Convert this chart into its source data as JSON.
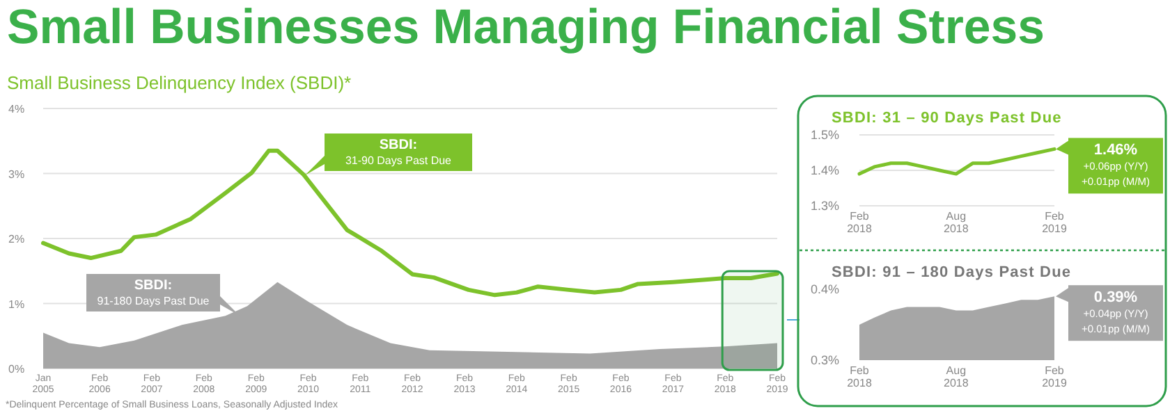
{
  "chart_data": [
    {
      "type": "line",
      "title": "Small Businesses Managing Financial Stress",
      "subtitle": "Small Business Delinquency Index (SBDI)*",
      "annotations": [
        "*Delinquent Percentage of Small Business Loans, Seasonally Adjusted Index"
      ],
      "xlim": [
        "2005-01",
        "2019-02"
      ],
      "xticks": [
        {
          "value": "2005-01",
          "label": "Jan 2005"
        },
        {
          "value": "2006-02",
          "label": "Feb 2006"
        },
        {
          "value": "2007-02",
          "label": "Feb 2007"
        },
        {
          "value": "2008-02",
          "label": "Feb 2008"
        },
        {
          "value": "2009-02",
          "label": "Feb 2009"
        },
        {
          "value": "2010-02",
          "label": "Feb 2010"
        },
        {
          "value": "2011-02",
          "label": "Feb 2011"
        },
        {
          "value": "2012-02",
          "label": "Feb 2012"
        },
        {
          "value": "2013-02",
          "label": "Feb 2013"
        },
        {
          "value": "2014-02",
          "label": "Feb 2014"
        },
        {
          "value": "2015-02",
          "label": "Feb 2015"
        },
        {
          "value": "2016-02",
          "label": "Feb 2016"
        },
        {
          "value": "2017-02",
          "label": "Feb 2017"
        },
        {
          "value": "2018-02",
          "label": "Feb 2018"
        },
        {
          "value": "2019-02",
          "label": "Feb 2019"
        }
      ],
      "bands": [
        {
          "axis": "x",
          "from": "2018-02",
          "to": "2019-02",
          "color": "#2e9e4a"
        }
      ],
      "ylim": [
        0,
        4
      ],
      "yticks": [
        {
          "value": 0,
          "label": "0%"
        },
        {
          "value": 1,
          "label": "1%"
        },
        {
          "value": 2,
          "label": "2%"
        },
        {
          "value": 3,
          "label": "3%"
        },
        {
          "value": 4,
          "label": "4%"
        }
      ],
      "grid": "y",
      "legend": false,
      "series": [
        {
          "name": "SBDI: 91-180 Days Past Due",
          "type": "area",
          "color": "#a6a6a6",
          "x": [
            "2005-01",
            "2005-07",
            "2006-02",
            "2006-10",
            "2007-09",
            "2008-07",
            "2008-12",
            "2009-07",
            "2010-02",
            "2010-11",
            "2011-09",
            "2012-06",
            "2013-10",
            "2015-07",
            "2016-11",
            "2018-02",
            "2019-02"
          ],
          "values": [
            0.55,
            0.39,
            0.33,
            0.43,
            0.67,
            0.81,
            0.96,
            1.33,
            1.03,
            0.67,
            0.39,
            0.28,
            0.26,
            0.23,
            0.3,
            0.34,
            0.39
          ]
        },
        {
          "name": "SBDI: 31-90 Days Past Due",
          "color": "#7dc22b",
          "x": [
            "2005-01",
            "2005-07",
            "2005-12",
            "2006-07",
            "2006-10",
            "2007-03",
            "2007-11",
            "2008-07",
            "2009-01",
            "2009-05",
            "2009-07",
            "2010-01",
            "2010-11",
            "2011-07",
            "2012-02",
            "2012-07",
            "2013-03",
            "2013-09",
            "2014-02",
            "2014-07",
            "2015-02",
            "2015-08",
            "2016-02",
            "2016-06",
            "2017-02",
            "2017-10",
            "2018-02",
            "2018-08",
            "2019-02"
          ],
          "values": [
            1.93,
            1.77,
            1.7,
            1.81,
            2.02,
            2.06,
            2.3,
            2.7,
            3.01,
            3.35,
            3.35,
            2.98,
            2.13,
            1.81,
            1.45,
            1.4,
            1.21,
            1.13,
            1.17,
            1.26,
            1.21,
            1.17,
            1.21,
            1.3,
            1.33,
            1.37,
            1.39,
            1.39,
            1.46
          ]
        }
      ]
    },
    {
      "type": "line",
      "title": "SBDI: 31 – 90 Days Past Due",
      "annotations": [
        {
          "text": "1.46%",
          "x": "2019-02",
          "y": 1.46
        },
        "+0.06pp (Y/Y)",
        "+0.01pp (M/M)"
      ],
      "xlim": [
        "2018-02",
        "2019-02"
      ],
      "xticks": [
        {
          "value": "2018-02",
          "label": "Feb 2018"
        },
        {
          "value": "2018-08",
          "label": "Aug 2018"
        },
        {
          "value": "2019-02",
          "label": "Feb 2019"
        }
      ],
      "ylim": [
        1.3,
        1.5
      ],
      "yticks": [
        {
          "value": 1.3,
          "label": "1.3%"
        },
        {
          "value": 1.4,
          "label": "1.4%"
        },
        {
          "value": 1.5,
          "label": "1.5%"
        }
      ],
      "grid": "y",
      "legend": false,
      "series": [
        {
          "color": "#7dc22b",
          "x": [
            "2018-02",
            "2018-03",
            "2018-04",
            "2018-05",
            "2018-06",
            "2018-07",
            "2018-08",
            "2018-09",
            "2018-10",
            "2018-11",
            "2018-12",
            "2019-01",
            "2019-02"
          ],
          "values": [
            1.39,
            1.41,
            1.42,
            1.42,
            1.41,
            1.4,
            1.39,
            1.42,
            1.42,
            1.43,
            1.44,
            1.45,
            1.46
          ]
        }
      ]
    },
    {
      "type": "area",
      "title": "SBDI: 91 – 180 Days Past Due",
      "annotations": [
        {
          "text": "0.39%",
          "x": "2019-02",
          "y": 0.39
        },
        "+0.04pp (Y/Y)",
        "+0.01pp (M/M)"
      ],
      "xlim": [
        "2018-02",
        "2019-02"
      ],
      "xticks": [
        {
          "value": "2018-02",
          "label": "Feb 2018"
        },
        {
          "value": "2018-08",
          "label": "Aug 2018"
        },
        {
          "value": "2019-02",
          "label": "Feb 2019"
        }
      ],
      "ylim": [
        0.3,
        0.4
      ],
      "yticks": [
        {
          "value": 0.3,
          "label": "0.3%"
        },
        {
          "value": 0.4,
          "label": "0.4%"
        }
      ],
      "legend": false,
      "series": [
        {
          "color": "#a6a6a6",
          "x": [
            "2018-02",
            "2018-03",
            "2018-04",
            "2018-05",
            "2018-06",
            "2018-07",
            "2018-08",
            "2018-09",
            "2018-10",
            "2018-11",
            "2018-12",
            "2019-01",
            "2019-02"
          ],
          "values": [
            0.35,
            0.36,
            0.37,
            0.375,
            0.375,
            0.375,
            0.37,
            0.37,
            0.375,
            0.38,
            0.385,
            0.385,
            0.39
          ]
        }
      ]
    }
  ]
}
